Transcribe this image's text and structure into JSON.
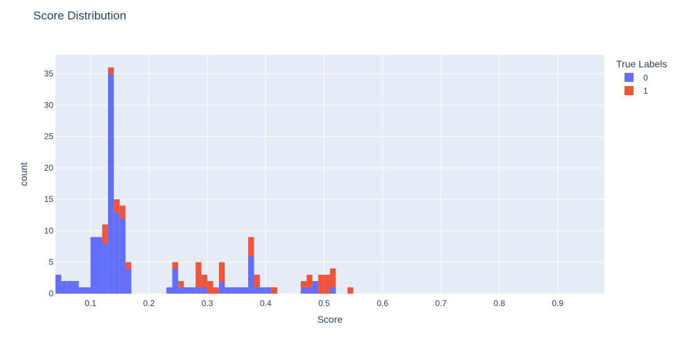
{
  "chart_data": {
    "type": "bar",
    "title": "Score Distribution",
    "xlabel": "Score",
    "ylabel": "count",
    "barmode": "stacked histogram",
    "bin_width": 0.01,
    "x_bin_starts": [
      0.04,
      0.05,
      0.06,
      0.07,
      0.08,
      0.09,
      0.1,
      0.11,
      0.12,
      0.13,
      0.14,
      0.15,
      0.16,
      0.17,
      0.18,
      0.19,
      0.2,
      0.21,
      0.22,
      0.23,
      0.24,
      0.25,
      0.26,
      0.27,
      0.28,
      0.29,
      0.3,
      0.31,
      0.32,
      0.33,
      0.34,
      0.35,
      0.36,
      0.37,
      0.38,
      0.39,
      0.4,
      0.41,
      0.42,
      0.43,
      0.44,
      0.45,
      0.46,
      0.47,
      0.48,
      0.49,
      0.5,
      0.51,
      0.52,
      0.53,
      0.54,
      0.55,
      0.56,
      0.57,
      0.58,
      0.59,
      0.6,
      0.61,
      0.62,
      0.63,
      0.64,
      0.65,
      0.66,
      0.67,
      0.68,
      0.69,
      0.7,
      0.71,
      0.72,
      0.73,
      0.74,
      0.75,
      0.76,
      0.77,
      0.78,
      0.79,
      0.8,
      0.81,
      0.82,
      0.83,
      0.84,
      0.85,
      0.86,
      0.87,
      0.88,
      0.89,
      0.9,
      0.91,
      0.92,
      0.93,
      0.94,
      0.95,
      0.96
    ],
    "xlim": [
      0.04,
      0.98
    ],
    "ylim": [
      0,
      38
    ],
    "x_ticks": [
      "0.1",
      "0.2",
      "0.3",
      "0.4",
      "0.5",
      "0.6",
      "0.7",
      "0.8",
      "0.9"
    ],
    "x_tick_values": [
      0.1,
      0.2,
      0.3,
      0.4,
      0.5,
      0.6,
      0.7,
      0.8,
      0.9
    ],
    "y_ticks": [
      "0",
      "5",
      "10",
      "15",
      "20",
      "25",
      "30",
      "35"
    ],
    "y_tick_values": [
      0,
      5,
      10,
      15,
      20,
      25,
      30,
      35
    ],
    "grid": true,
    "legend_position": "right",
    "legend_title": "True Labels",
    "series": [
      {
        "name": "0",
        "color": "#636efa",
        "values": [
          3,
          2,
          2,
          2,
          1,
          1,
          9,
          9,
          8,
          35,
          13,
          12,
          4,
          0,
          0,
          0,
          0,
          0,
          0,
          1,
          4,
          1,
          1,
          1,
          1,
          1,
          0,
          0,
          2,
          1,
          1,
          1,
          1,
          6,
          1,
          1,
          1,
          0,
          0,
          0,
          0,
          0,
          1,
          1,
          2,
          0,
          0,
          1,
          0,
          0,
          0,
          0,
          0,
          0,
          0,
          0,
          0,
          0,
          0,
          0,
          0,
          0,
          0,
          0,
          0,
          0,
          0,
          0,
          0,
          0,
          0,
          0,
          0,
          0,
          0,
          0,
          0,
          0,
          0,
          0,
          0,
          0,
          0,
          0,
          0,
          0,
          0,
          0,
          0,
          0,
          0,
          0,
          0
        ]
      },
      {
        "name": "1",
        "color": "#ef553b",
        "values": [
          0,
          0,
          0,
          0,
          0,
          0,
          0,
          0,
          3,
          1,
          2,
          2,
          1,
          0,
          0,
          0,
          0,
          0,
          0,
          0,
          1,
          1,
          0,
          0,
          4,
          2,
          2,
          1,
          3,
          0,
          0,
          0,
          0,
          3,
          2,
          0,
          0,
          1,
          0,
          0,
          0,
          0,
          1,
          2,
          0,
          3,
          3,
          3,
          0,
          0,
          1,
          0,
          0,
          0,
          0,
          0,
          0,
          0,
          0,
          0,
          0,
          0,
          0,
          0,
          0,
          0,
          0,
          0,
          0,
          0,
          0,
          0,
          0,
          0,
          0,
          0,
          0,
          0,
          0,
          0,
          0,
          0,
          0,
          0,
          0,
          0,
          0,
          0,
          0,
          0,
          0,
          0,
          0
        ]
      }
    ]
  }
}
